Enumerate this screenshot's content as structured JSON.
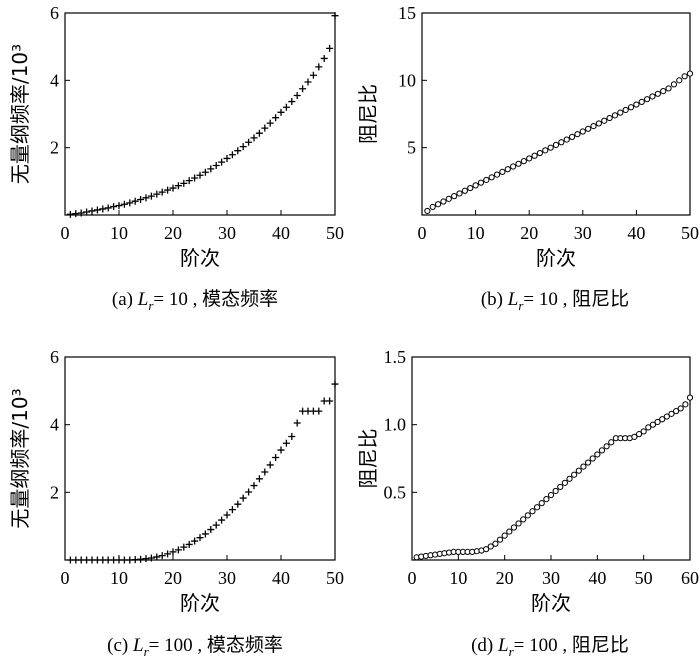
{
  "chart_data": [
    {
      "id": "a",
      "type": "scatter",
      "marker": "plus",
      "caption": {
        "label": "(a)",
        "var": "L",
        "sub": "r",
        "rest": "= 10 , 模态频率"
      },
      "xlabel": "阶次",
      "ylabel": "无量纲频率/10³",
      "xlim": [
        0,
        50
      ],
      "ylim": [
        0,
        6
      ],
      "xticks": [
        "0",
        "10",
        "20",
        "30",
        "40",
        "50"
      ],
      "yticks": [
        "2",
        "4",
        "6"
      ],
      "x": [
        1,
        2,
        3,
        4,
        5,
        6,
        7,
        8,
        9,
        10,
        11,
        12,
        13,
        14,
        15,
        16,
        17,
        18,
        19,
        20,
        21,
        22,
        23,
        24,
        25,
        26,
        27,
        28,
        29,
        30,
        31,
        32,
        33,
        34,
        35,
        36,
        37,
        38,
        39,
        40,
        41,
        42,
        43,
        44,
        45,
        46,
        47,
        48,
        49,
        50
      ],
      "y": [
        0.02,
        0.04,
        0.06,
        0.09,
        0.12,
        0.15,
        0.18,
        0.21,
        0.25,
        0.28,
        0.32,
        0.36,
        0.41,
        0.46,
        0.51,
        0.56,
        0.62,
        0.68,
        0.74,
        0.8,
        0.87,
        0.94,
        1.02,
        1.1,
        1.18,
        1.27,
        1.37,
        1.47,
        1.57,
        1.68,
        1.79,
        1.91,
        2.03,
        2.16,
        2.29,
        2.43,
        2.58,
        2.73,
        2.89,
        3.05,
        3.2,
        3.37,
        3.55,
        3.75,
        3.95,
        4.15,
        4.4,
        4.65,
        4.95,
        5.92
      ]
    },
    {
      "id": "b",
      "type": "scatter",
      "marker": "circle",
      "caption": {
        "label": "(b)",
        "var": "L",
        "sub": "r",
        "rest": "= 10 , 阻尼比"
      },
      "xlabel": "阶次",
      "ylabel": "阻尼比",
      "xlim": [
        0,
        50
      ],
      "ylim": [
        0,
        15
      ],
      "xticks": [
        "0",
        "10",
        "20",
        "30",
        "40",
        "50"
      ],
      "yticks": [
        "5",
        "10",
        "15"
      ],
      "x": [
        1,
        2,
        3,
        4,
        5,
        6,
        7,
        8,
        9,
        10,
        11,
        12,
        13,
        14,
        15,
        16,
        17,
        18,
        19,
        20,
        21,
        22,
        23,
        24,
        25,
        26,
        27,
        28,
        29,
        30,
        31,
        32,
        33,
        34,
        35,
        36,
        37,
        38,
        39,
        40,
        41,
        42,
        43,
        44,
        45,
        46,
        47,
        48,
        49,
        50
      ],
      "y": [
        0.3,
        0.6,
        0.8,
        1.0,
        1.2,
        1.4,
        1.6,
        1.8,
        2.0,
        2.2,
        2.4,
        2.6,
        2.8,
        3.0,
        3.2,
        3.4,
        3.6,
        3.8,
        4.0,
        4.2,
        4.4,
        4.6,
        4.8,
        5.0,
        5.2,
        5.4,
        5.6,
        5.8,
        6.0,
        6.2,
        6.4,
        6.6,
        6.8,
        7.0,
        7.2,
        7.4,
        7.6,
        7.8,
        8.0,
        8.2,
        8.4,
        8.6,
        8.8,
        9.0,
        9.2,
        9.4,
        9.7,
        10.0,
        10.3,
        10.5
      ]
    },
    {
      "id": "c",
      "type": "scatter",
      "marker": "plus",
      "caption": {
        "label": "(c)",
        "var": "L",
        "sub": "r",
        "rest": "= 100 , 模态频率"
      },
      "xlabel": "阶次",
      "ylabel": "无量纲频率/10³",
      "xlim": [
        0,
        50
      ],
      "ylim": [
        0,
        6
      ],
      "xticks": [
        "0",
        "10",
        "20",
        "30",
        "40",
        "50"
      ],
      "yticks": [
        "2",
        "4",
        "6"
      ],
      "x": [
        1,
        2,
        3,
        4,
        5,
        6,
        7,
        8,
        9,
        10,
        11,
        12,
        13,
        14,
        15,
        16,
        17,
        18,
        19,
        20,
        21,
        22,
        23,
        24,
        25,
        26,
        27,
        28,
        29,
        30,
        31,
        32,
        33,
        34,
        35,
        36,
        37,
        38,
        39,
        40,
        41,
        42,
        43,
        44,
        45,
        46,
        47,
        48,
        49,
        50
      ],
      "y": [
        0.0,
        0.0,
        0.0,
        0.0,
        0.0,
        0.0,
        0.0,
        0.0,
        0.0,
        0.0,
        0.0,
        0.0,
        0.01,
        0.02,
        0.04,
        0.06,
        0.09,
        0.13,
        0.18,
        0.24,
        0.3,
        0.38,
        0.46,
        0.56,
        0.66,
        0.77,
        0.9,
        1.03,
        1.18,
        1.33,
        1.49,
        1.65,
        1.83,
        2.01,
        2.2,
        2.4,
        2.6,
        2.81,
        3.03,
        3.25,
        3.45,
        3.65,
        4.05,
        4.4,
        4.4,
        4.4,
        4.4,
        4.7,
        4.7,
        5.2
      ]
    },
    {
      "id": "d",
      "type": "scatter",
      "marker": "circle",
      "caption": {
        "label": "(d)",
        "var": "L",
        "sub": "r",
        "rest": "= 100 , 阻尼比"
      },
      "xlabel": "阶次",
      "ylabel": "阻尼比",
      "xlim": [
        0,
        60
      ],
      "ylim": [
        0,
        1.5
      ],
      "xticks": [
        "0",
        "10",
        "20",
        "30",
        "40",
        "50",
        "60"
      ],
      "yticks": [
        "0.5",
        "1.0",
        "1.5"
      ],
      "x": [
        1,
        2,
        3,
        4,
        5,
        6,
        7,
        8,
        9,
        10,
        11,
        12,
        13,
        14,
        15,
        16,
        17,
        18,
        19,
        20,
        21,
        22,
        23,
        24,
        25,
        26,
        27,
        28,
        29,
        30,
        31,
        32,
        33,
        34,
        35,
        36,
        37,
        38,
        39,
        40,
        41,
        42,
        43,
        44,
        45,
        46,
        47,
        48,
        49,
        50,
        51,
        52,
        53,
        54,
        55,
        56,
        57,
        58,
        59,
        60
      ],
      "y": [
        0.02,
        0.025,
        0.03,
        0.035,
        0.04,
        0.045,
        0.05,
        0.055,
        0.06,
        0.06,
        0.06,
        0.06,
        0.06,
        0.065,
        0.07,
        0.08,
        0.1,
        0.12,
        0.15,
        0.18,
        0.21,
        0.24,
        0.27,
        0.3,
        0.33,
        0.36,
        0.39,
        0.42,
        0.45,
        0.48,
        0.51,
        0.54,
        0.57,
        0.6,
        0.63,
        0.66,
        0.69,
        0.72,
        0.75,
        0.78,
        0.81,
        0.84,
        0.87,
        0.9,
        0.9,
        0.9,
        0.9,
        0.91,
        0.93,
        0.95,
        0.98,
        1.0,
        1.02,
        1.04,
        1.06,
        1.08,
        1.1,
        1.12,
        1.15,
        1.2
      ]
    }
  ]
}
